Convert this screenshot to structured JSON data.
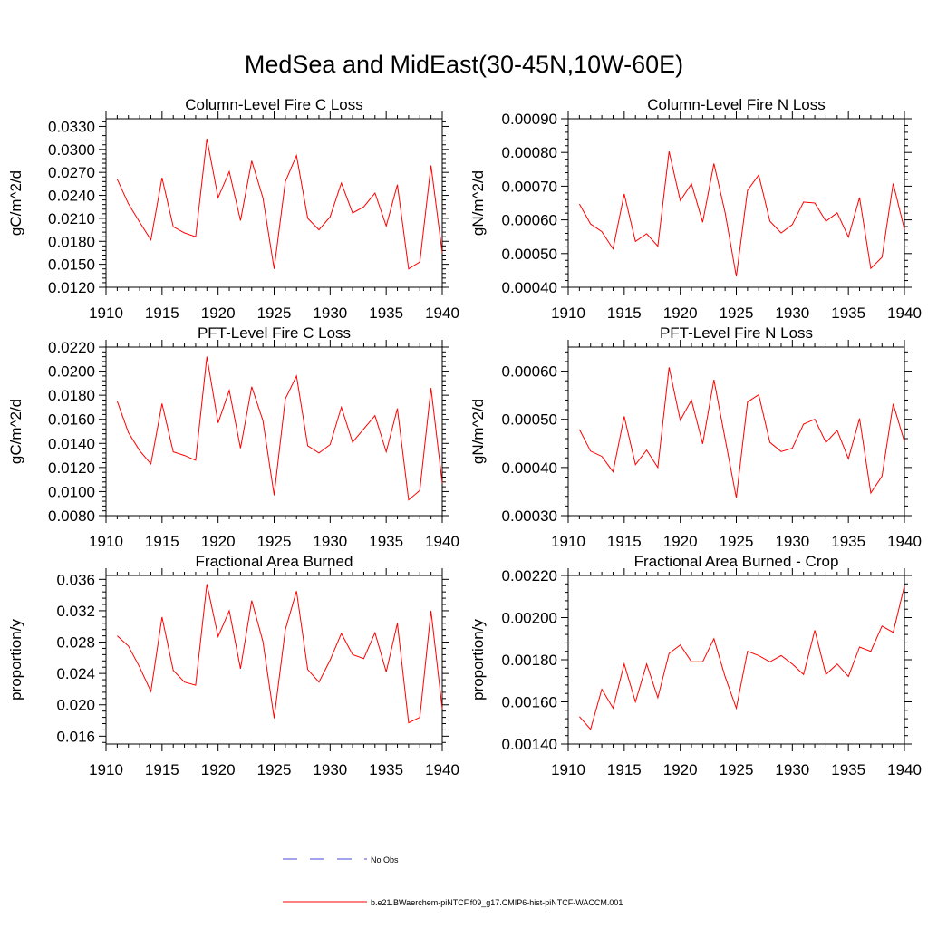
{
  "title": "MedSea and MidEast(30-45N,10W-60E)",
  "legend": {
    "entries": [
      {
        "label": "No Obs",
        "color": "#4a4adc",
        "style": "dashed"
      },
      {
        "label": "b.e21.BWaerchem-piNTCF.f09_g17.CMIP6-hist-piNTCF-WACCM.001",
        "color": "#ff0000",
        "style": "solid"
      }
    ]
  },
  "chart_data": [
    {
      "type": "line",
      "title": "Column-Level Fire C Loss",
      "ylabel": "gC/m^2/d",
      "xlim": [
        1910,
        1940
      ],
      "ylim": [
        0.012,
        0.034
      ],
      "xticks": [
        "1910",
        "1915",
        "1920",
        "1925",
        "1930",
        "1935",
        "1940"
      ],
      "yticks": [
        "0.0120",
        "0.0150",
        "0.0180",
        "0.0210",
        "0.0240",
        "0.0270",
        "0.0300",
        "0.0330"
      ],
      "series": [
        {
          "color": "#ff0000",
          "x": [
            1911,
            1912,
            1913,
            1914,
            1915,
            1916,
            1917,
            1918,
            1919,
            1920,
            1921,
            1922,
            1923,
            1924,
            1925,
            1926,
            1927,
            1928,
            1929,
            1930,
            1931,
            1932,
            1933,
            1934,
            1935,
            1936,
            1937,
            1938,
            1939,
            1940
          ],
          "y": [
            0.0261,
            0.0229,
            0.0205,
            0.0182,
            0.0263,
            0.0199,
            0.0191,
            0.0186,
            0.0314,
            0.0237,
            0.0271,
            0.0207,
            0.0285,
            0.0237,
            0.0144,
            0.0258,
            0.0292,
            0.021,
            0.0195,
            0.0212,
            0.0256,
            0.0217,
            0.0225,
            0.0243,
            0.02,
            0.0254,
            0.0144,
            0.0153,
            0.0279,
            0.0165
          ]
        }
      ]
    },
    {
      "type": "line",
      "title": "Column-Level Fire N Loss",
      "ylabel": "gN/m^2/d",
      "xlim": [
        1910,
        1940
      ],
      "ylim": [
        0.0004,
        0.0009
      ],
      "xticks": [
        "1910",
        "1915",
        "1920",
        "1925",
        "1930",
        "1935",
        "1940"
      ],
      "yticks": [
        "0.00040",
        "0.00050",
        "0.00060",
        "0.00070",
        "0.00080",
        "0.00090"
      ],
      "series": [
        {
          "color": "#ff0000",
          "x": [
            1911,
            1912,
            1913,
            1914,
            1915,
            1916,
            1917,
            1918,
            1919,
            1920,
            1921,
            1922,
            1923,
            1924,
            1925,
            1926,
            1927,
            1928,
            1929,
            1930,
            1931,
            1932,
            1933,
            1934,
            1935,
            1936,
            1937,
            1938,
            1939,
            1940
          ],
          "y": [
            0.000647,
            0.000588,
            0.000565,
            0.000514,
            0.000677,
            0.000536,
            0.000559,
            0.000522,
            0.000803,
            0.000657,
            0.000707,
            0.000593,
            0.000767,
            0.000622,
            0.000432,
            0.000688,
            0.000733,
            0.000596,
            0.000561,
            0.000586,
            0.000653,
            0.00065,
            0.000596,
            0.000621,
            0.000549,
            0.000666,
            0.000456,
            0.000489,
            0.000708,
            0.000572
          ]
        }
      ]
    },
    {
      "type": "line",
      "title": "PFT-Level Fire C Loss",
      "ylabel": "gC/m^2/d",
      "xlim": [
        1910,
        1940
      ],
      "ylim": [
        0.008,
        0.022
      ],
      "xticks": [
        "1910",
        "1915",
        "1920",
        "1925",
        "1930",
        "1935",
        "1940"
      ],
      "yticks": [
        "0.0080",
        "0.0100",
        "0.0120",
        "0.0140",
        "0.0160",
        "0.0180",
        "0.0200",
        "0.0220"
      ],
      "series": [
        {
          "color": "#ff0000",
          "x": [
            1911,
            1912,
            1913,
            1914,
            1915,
            1916,
            1917,
            1918,
            1919,
            1920,
            1921,
            1922,
            1923,
            1924,
            1925,
            1926,
            1927,
            1928,
            1929,
            1930,
            1931,
            1932,
            1933,
            1934,
            1935,
            1936,
            1937,
            1938,
            1939,
            1940
          ],
          "y": [
            0.0175,
            0.0149,
            0.0134,
            0.0123,
            0.0173,
            0.0133,
            0.013,
            0.0126,
            0.0212,
            0.0157,
            0.0184,
            0.0136,
            0.0187,
            0.0159,
            0.0097,
            0.0177,
            0.0196,
            0.0138,
            0.0132,
            0.0139,
            0.017,
            0.0141,
            0.0152,
            0.0163,
            0.0133,
            0.0169,
            0.0093,
            0.0101,
            0.0186,
            0.0107
          ]
        }
      ]
    },
    {
      "type": "line",
      "title": "PFT-Level Fire N Loss",
      "ylabel": "gN/m^2/d",
      "xlim": [
        1910,
        1940
      ],
      "ylim": [
        0.0003,
        0.00065
      ],
      "xticks": [
        "1910",
        "1915",
        "1920",
        "1925",
        "1930",
        "1935",
        "1940"
      ],
      "yticks": [
        "0.00030",
        "0.00040",
        "0.00050",
        "0.00060"
      ],
      "series": [
        {
          "color": "#ff0000",
          "x": [
            1911,
            1912,
            1913,
            1914,
            1915,
            1916,
            1917,
            1918,
            1919,
            1920,
            1921,
            1922,
            1923,
            1924,
            1925,
            1926,
            1927,
            1928,
            1929,
            1930,
            1931,
            1932,
            1933,
            1934,
            1935,
            1936,
            1937,
            1938,
            1939,
            1940
          ],
          "y": [
            0.000479,
            0.000434,
            0.000423,
            0.000391,
            0.000506,
            0.000406,
            0.000436,
            0.0004,
            0.000608,
            0.000498,
            0.00054,
            0.000449,
            0.000582,
            0.00046,
            0.000337,
            0.000536,
            0.000551,
            0.000452,
            0.000433,
            0.00044,
            0.00049,
            0.0005,
            0.000452,
            0.000477,
            0.000418,
            0.000502,
            0.000347,
            0.000382,
            0.000532,
            0.000454
          ]
        }
      ]
    },
    {
      "type": "line",
      "title": "Fractional Area Burned",
      "ylabel": "proportion/y",
      "xlim": [
        1910,
        1940
      ],
      "ylim": [
        0.015,
        0.0365
      ],
      "xticks": [
        "1910",
        "1915",
        "1920",
        "1925",
        "1930",
        "1935",
        "1940"
      ],
      "yticks": [
        "0.016",
        "0.020",
        "0.024",
        "0.028",
        "0.032",
        "0.036"
      ],
      "series": [
        {
          "color": "#ff0000",
          "x": [
            1911,
            1912,
            1913,
            1914,
            1915,
            1916,
            1917,
            1918,
            1919,
            1920,
            1921,
            1922,
            1923,
            1924,
            1925,
            1926,
            1927,
            1928,
            1929,
            1930,
            1931,
            1932,
            1933,
            1934,
            1935,
            1936,
            1937,
            1938,
            1939,
            1940
          ],
          "y": [
            0.0288,
            0.0275,
            0.0248,
            0.0217,
            0.0312,
            0.0244,
            0.0229,
            0.0225,
            0.0354,
            0.0287,
            0.032,
            0.0246,
            0.0333,
            0.0281,
            0.0183,
            0.0296,
            0.0345,
            0.0245,
            0.0229,
            0.0257,
            0.0291,
            0.0264,
            0.0259,
            0.0292,
            0.0242,
            0.0304,
            0.0177,
            0.0184,
            0.032,
            0.0195
          ]
        }
      ]
    },
    {
      "type": "line",
      "title": "Fractional Area Burned - Crop",
      "ylabel": "proportion/y",
      "xlim": [
        1910,
        1940
      ],
      "ylim": [
        0.0014,
        0.0022
      ],
      "xticks": [
        "1910",
        "1915",
        "1920",
        "1925",
        "1930",
        "1935",
        "1940"
      ],
      "yticks": [
        "0.00140",
        "0.00160",
        "0.00180",
        "0.00200",
        "0.00220"
      ],
      "series": [
        {
          "color": "#ff0000",
          "x": [
            1911,
            1912,
            1913,
            1914,
            1915,
            1916,
            1917,
            1918,
            1919,
            1920,
            1921,
            1922,
            1923,
            1924,
            1925,
            1926,
            1927,
            1928,
            1929,
            1930,
            1931,
            1932,
            1933,
            1934,
            1935,
            1936,
            1937,
            1938,
            1939,
            1940
          ],
          "y": [
            0.00153,
            0.00147,
            0.00166,
            0.00157,
            0.00178,
            0.0016,
            0.00178,
            0.00162,
            0.00183,
            0.00187,
            0.00179,
            0.00179,
            0.0019,
            0.00172,
            0.00157,
            0.00184,
            0.00182,
            0.00179,
            0.00182,
            0.00178,
            0.00173,
            0.00194,
            0.00173,
            0.00178,
            0.00172,
            0.00186,
            0.00184,
            0.00196,
            0.00193,
            0.00215
          ]
        }
      ]
    }
  ]
}
